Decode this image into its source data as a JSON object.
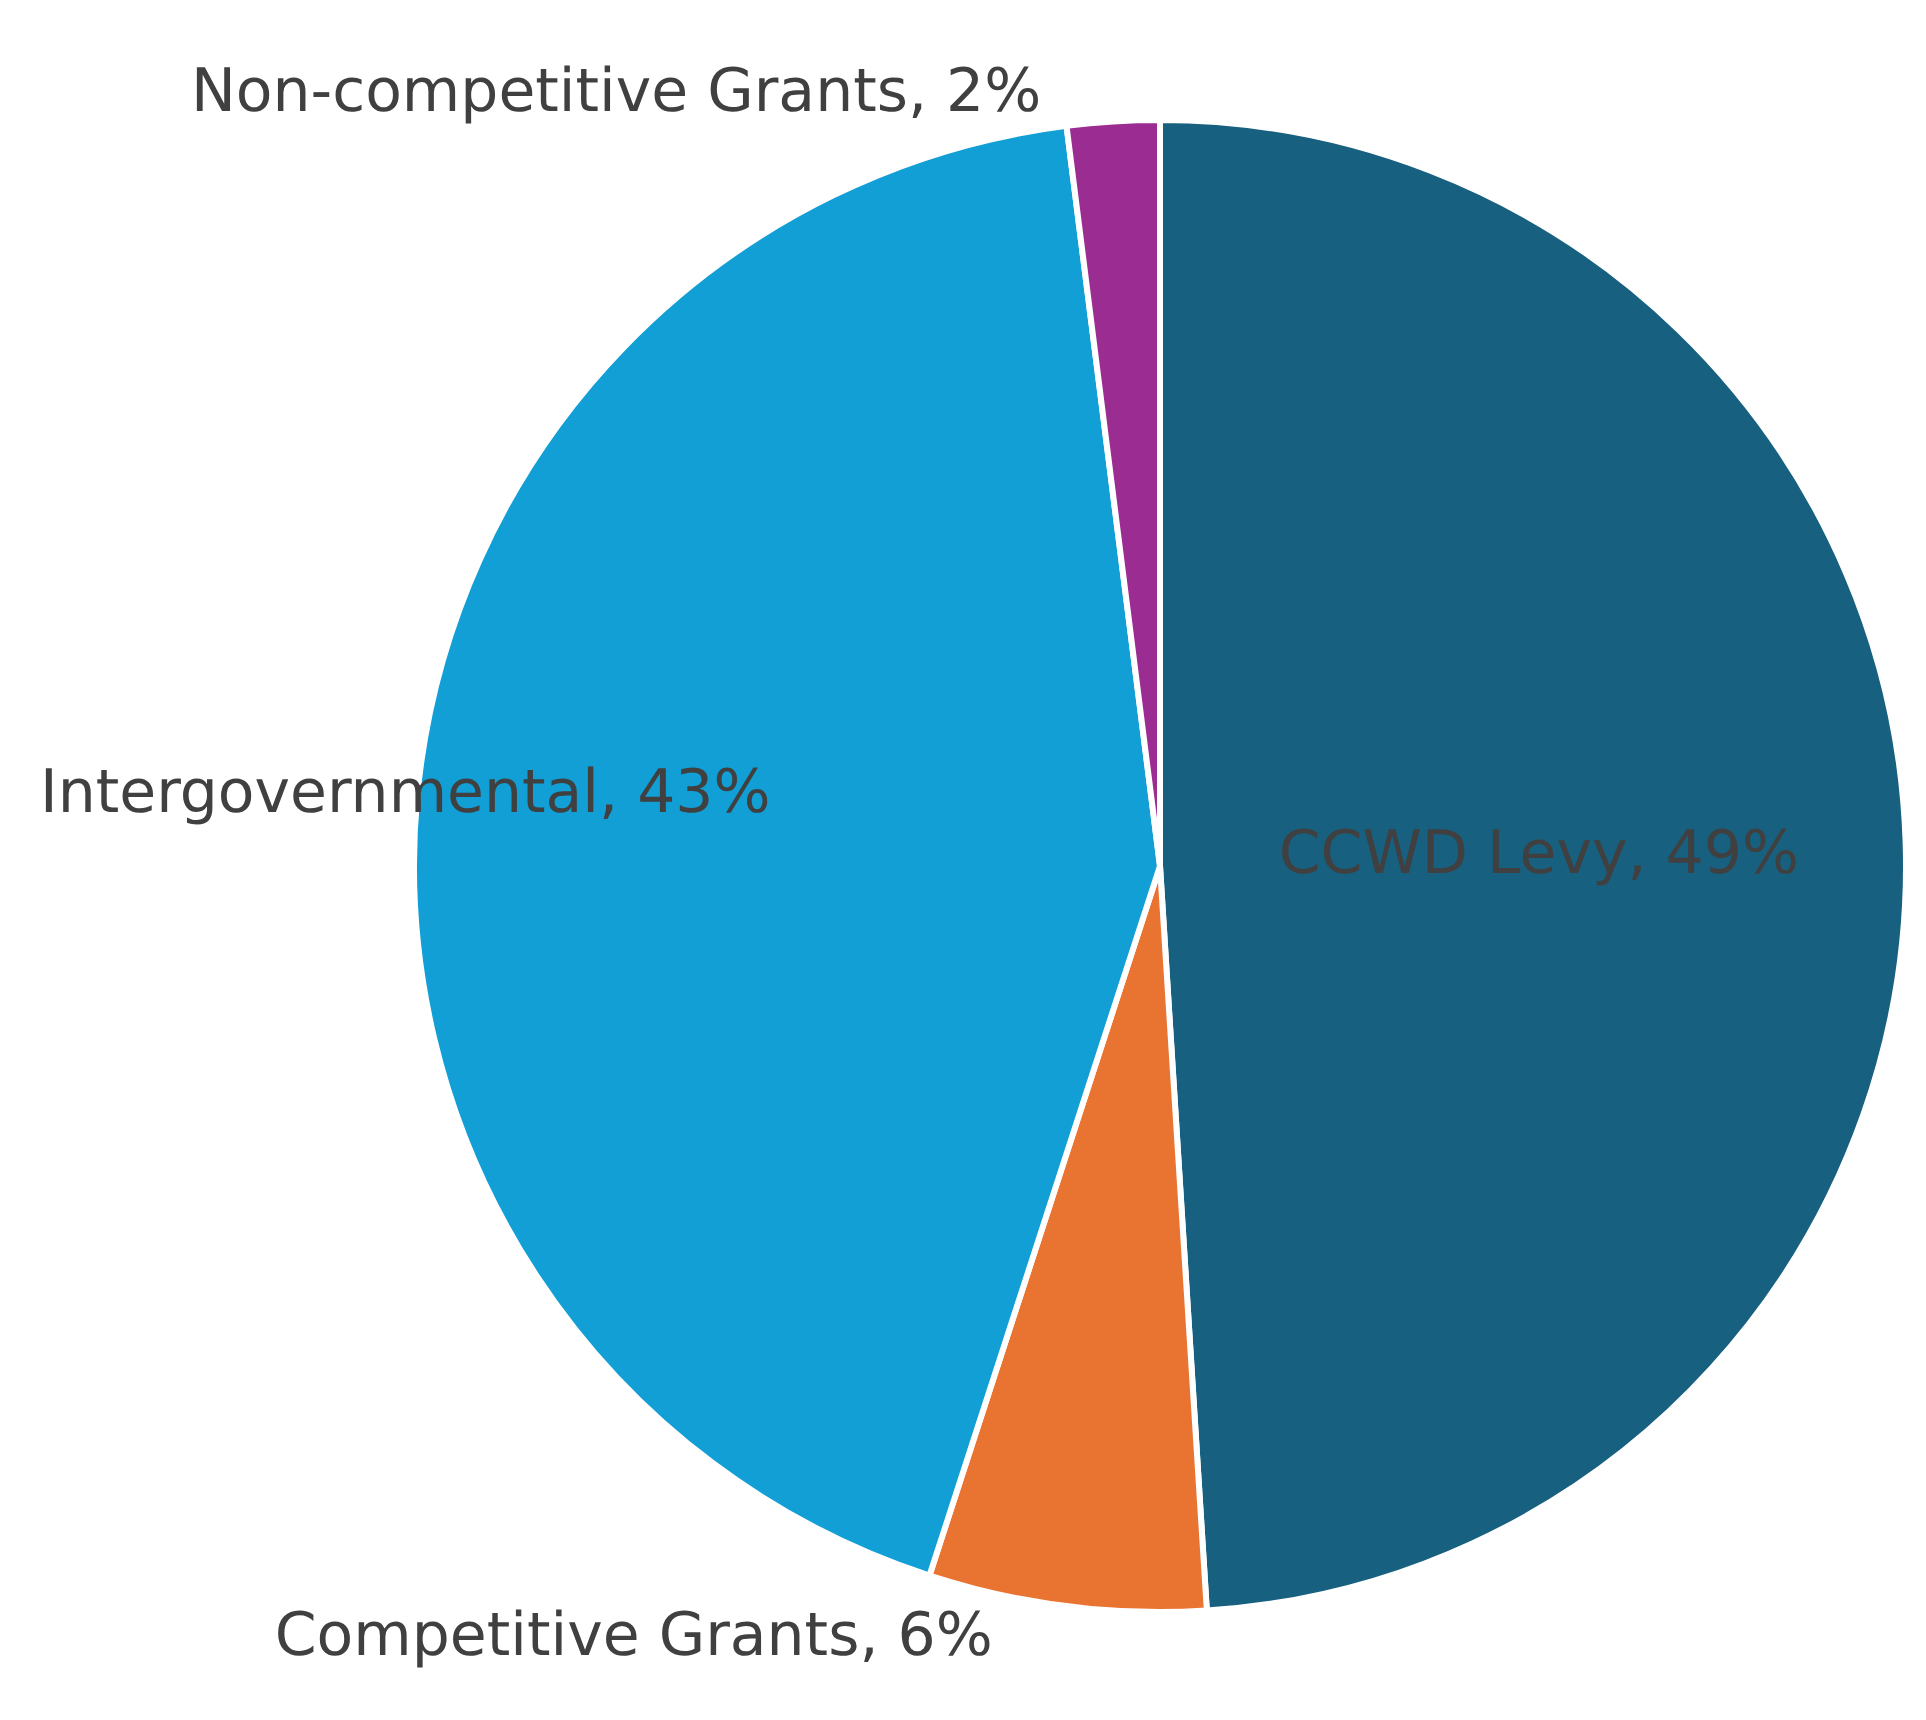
{
  "chart_data": {
    "type": "pie",
    "categories": [
      "CCWD Levy",
      "Competitive Grants",
      "Intergovernmental",
      "Non-competitive Grants"
    ],
    "values": [
      49,
      6,
      43,
      2
    ],
    "value_labels": [
      "49%",
      "6%",
      "43%",
      "2%"
    ],
    "colors": [
      "#17607f",
      "#e97432",
      "#119fd6",
      "#9b2c91"
    ],
    "legend": false
  }
}
